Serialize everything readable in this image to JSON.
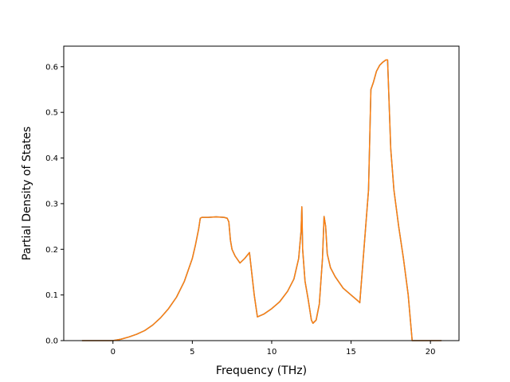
{
  "chart_data": {
    "type": "line",
    "title": "",
    "xlabel": "Frequency (THz)",
    "ylabel": "Partial Density of States",
    "xlim": [
      -3.1,
      21.8
    ],
    "ylim": [
      0.0,
      0.645
    ],
    "xticks": [
      0,
      5,
      10,
      15,
      20
    ],
    "yticks": [
      0.0,
      0.1,
      0.2,
      0.3,
      0.4,
      0.5,
      0.6
    ],
    "xtick_labels": [
      "0",
      "5",
      "10",
      "15",
      "20"
    ],
    "ytick_labels": [
      "0.0",
      "0.1",
      "0.2",
      "0.3",
      "0.4",
      "0.5",
      "0.6"
    ],
    "grid": false,
    "legend": "none",
    "series": [
      {
        "color": "#1f77b4",
        "x": [
          -1.95,
          -1.0,
          0.0,
          0.5,
          1.0,
          1.5,
          2.0,
          2.5,
          3.0,
          3.5,
          4.0,
          4.5,
          5.0,
          5.2,
          5.4,
          5.5,
          5.6,
          5.7,
          6.0,
          6.5,
          7.0,
          7.2,
          7.3,
          7.4,
          7.5,
          7.7,
          8.0,
          8.3,
          8.6,
          8.9,
          9.1,
          9.5,
          10.0,
          10.5,
          11.0,
          11.4,
          11.7,
          11.85,
          11.9,
          11.95,
          12.1,
          12.3,
          12.5,
          12.6,
          12.8,
          13.0,
          13.2,
          13.3,
          13.4,
          13.5,
          13.7,
          14.0,
          14.5,
          15.0,
          15.5,
          15.55,
          15.7,
          15.9,
          16.1,
          16.25,
          16.4,
          16.6,
          16.8,
          17.0,
          17.2,
          17.3,
          17.5,
          17.7,
          18.0,
          18.3,
          18.6,
          18.75,
          18.85,
          19.0,
          20.0,
          20.7
        ],
        "y": [
          0.0,
          0.0,
          0.0,
          0.003,
          0.008,
          0.014,
          0.022,
          0.034,
          0.05,
          0.07,
          0.095,
          0.13,
          0.18,
          0.21,
          0.245,
          0.268,
          0.27,
          0.27,
          0.27,
          0.271,
          0.27,
          0.268,
          0.26,
          0.22,
          0.2,
          0.185,
          0.17,
          0.18,
          0.193,
          0.1,
          0.052,
          0.058,
          0.07,
          0.085,
          0.108,
          0.135,
          0.18,
          0.24,
          0.293,
          0.2,
          0.13,
          0.09,
          0.045,
          0.038,
          0.045,
          0.08,
          0.18,
          0.272,
          0.25,
          0.19,
          0.16,
          0.14,
          0.115,
          0.1,
          0.085,
          0.083,
          0.15,
          0.24,
          0.33,
          0.55,
          0.565,
          0.59,
          0.603,
          0.61,
          0.615,
          0.615,
          0.42,
          0.33,
          0.25,
          0.18,
          0.1,
          0.04,
          0.0,
          0.0,
          0.0,
          0.0
        ]
      },
      {
        "color": "#ff7f0e",
        "x": [
          -1.95,
          -1.0,
          0.0,
          0.5,
          1.0,
          1.5,
          2.0,
          2.5,
          3.0,
          3.5,
          4.0,
          4.5,
          5.0,
          5.2,
          5.4,
          5.5,
          5.6,
          5.7,
          6.0,
          6.5,
          7.0,
          7.2,
          7.3,
          7.4,
          7.5,
          7.7,
          8.0,
          8.3,
          8.6,
          8.9,
          9.1,
          9.5,
          10.0,
          10.5,
          11.0,
          11.4,
          11.7,
          11.85,
          11.9,
          11.95,
          12.1,
          12.3,
          12.5,
          12.6,
          12.8,
          13.0,
          13.2,
          13.3,
          13.4,
          13.5,
          13.7,
          14.0,
          14.5,
          15.0,
          15.5,
          15.55,
          15.7,
          15.9,
          16.1,
          16.25,
          16.4,
          16.6,
          16.8,
          17.0,
          17.2,
          17.3,
          17.5,
          17.7,
          18.0,
          18.3,
          18.6,
          18.75,
          18.85,
          19.0,
          20.0,
          20.7
        ],
        "y": [
          0.0,
          0.0,
          0.0,
          0.003,
          0.008,
          0.014,
          0.022,
          0.034,
          0.05,
          0.07,
          0.095,
          0.13,
          0.18,
          0.21,
          0.245,
          0.268,
          0.27,
          0.27,
          0.27,
          0.271,
          0.27,
          0.268,
          0.26,
          0.22,
          0.2,
          0.185,
          0.17,
          0.18,
          0.193,
          0.1,
          0.052,
          0.058,
          0.07,
          0.085,
          0.108,
          0.135,
          0.18,
          0.24,
          0.293,
          0.2,
          0.13,
          0.09,
          0.045,
          0.038,
          0.045,
          0.08,
          0.18,
          0.272,
          0.25,
          0.19,
          0.16,
          0.14,
          0.115,
          0.1,
          0.085,
          0.083,
          0.15,
          0.24,
          0.33,
          0.55,
          0.565,
          0.59,
          0.603,
          0.61,
          0.615,
          0.615,
          0.42,
          0.33,
          0.25,
          0.18,
          0.1,
          0.04,
          0.0,
          0.0,
          0.0,
          0.0
        ]
      }
    ]
  }
}
